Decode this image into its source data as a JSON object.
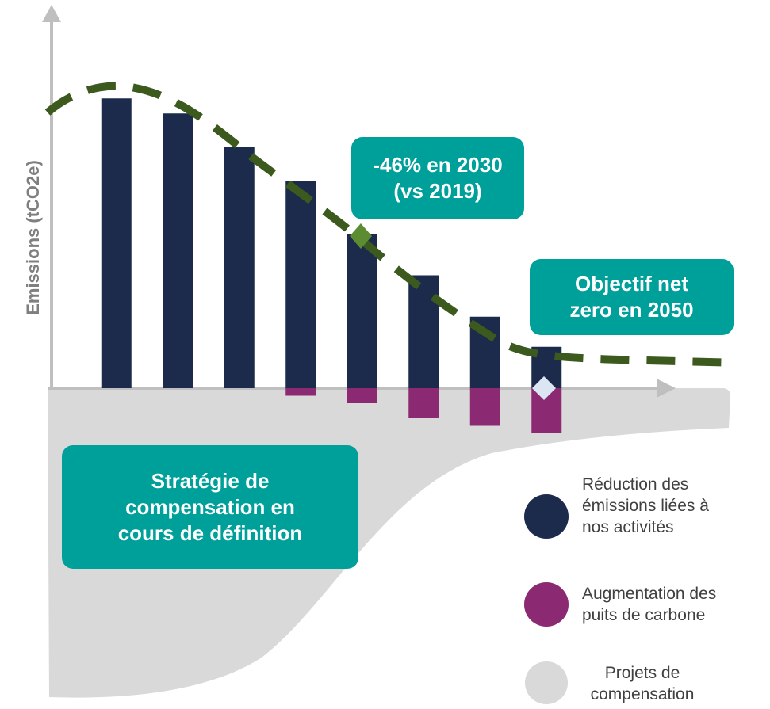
{
  "chart_data": {
    "type": "bar",
    "ylabel": "Emissions (tCO2e)",
    "categories": [
      null,
      null,
      null,
      null,
      null,
      null,
      null,
      null
    ],
    "series": [
      {
        "name": "Réduction des émissions liées à nos activités",
        "color": "#1c2a4b",
        "values": [
          77,
          73,
          64,
          55,
          41,
          30,
          19,
          11
        ]
      },
      {
        "name": "Augmentation des puits de carbone",
        "color": "#8b2a72",
        "values": [
          null,
          null,
          null,
          -2,
          -4,
          -8,
          -10,
          -12
        ]
      }
    ],
    "compensation": {
      "name": "Projets de compensation",
      "color": "#d9d9d9"
    },
    "annotations": [
      {
        "text": "-46% en 2030 (vs 2019)"
      },
      {
        "text": "Objectif net zero en 2050"
      },
      {
        "text": "Stratégie de compensation en cours de définition"
      }
    ],
    "ylim": [
      -82,
      100
    ],
    "trajectory_color": "#3d5a1e",
    "callout_color": "#00a09a"
  }
}
